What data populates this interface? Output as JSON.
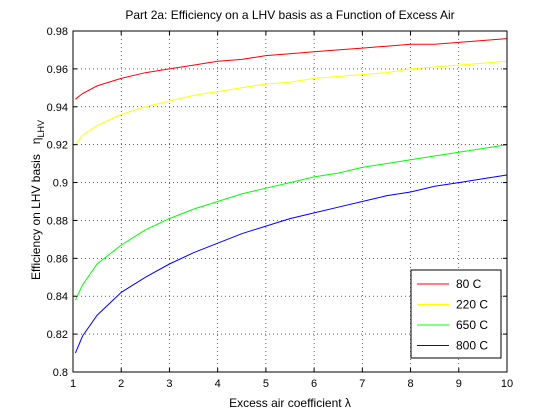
{
  "chart_data": {
    "type": "line",
    "title": "Part 2a: Efficiency on a LHV basis as a Function of Excess Air",
    "xlabel": "Excess air coefficient  λ",
    "ylabel": "Efficiency on LHV basis",
    "ylabel_symbol": "η",
    "ylabel_subscript": "LHV",
    "xlim": [
      1,
      10
    ],
    "ylim": [
      0.8,
      0.98
    ],
    "xticks": [
      1,
      2,
      3,
      4,
      5,
      6,
      7,
      8,
      9,
      10
    ],
    "yticks": [
      0.8,
      0.82,
      0.84,
      0.86,
      0.88,
      0.9,
      0.92,
      0.94,
      0.96,
      0.98
    ],
    "xtick_labels": [
      "1",
      "2",
      "3",
      "4",
      "5",
      "6",
      "7",
      "8",
      "9",
      "10"
    ],
    "ytick_labels": [
      "0.8",
      "0.82",
      "0.84",
      "0.86",
      "0.88",
      "0.9",
      "0.92",
      "0.94",
      "0.96",
      "0.98"
    ],
    "grid": true,
    "legend_position": "bottom-right",
    "series": [
      {
        "name": "80 C",
        "color": "#ff0000",
        "x": [
          1.05,
          1.2,
          1.5,
          2,
          2.5,
          3,
          3.5,
          4,
          4.5,
          5,
          5.5,
          6,
          6.5,
          7,
          7.5,
          8,
          8.5,
          9,
          9.5,
          10
        ],
        "y": [
          0.944,
          0.947,
          0.951,
          0.955,
          0.958,
          0.96,
          0.962,
          0.964,
          0.965,
          0.967,
          0.968,
          0.969,
          0.97,
          0.971,
          0.972,
          0.973,
          0.973,
          0.974,
          0.975,
          0.976
        ]
      },
      {
        "name": "220 C",
        "color": "#ffff00",
        "x": [
          1.05,
          1.2,
          1.5,
          2,
          2.5,
          3,
          3.5,
          4,
          4.5,
          5,
          5.5,
          6,
          6.5,
          7,
          7.5,
          8,
          8.5,
          9,
          9.5,
          10
        ],
        "y": [
          0.92,
          0.925,
          0.93,
          0.936,
          0.94,
          0.943,
          0.946,
          0.948,
          0.95,
          0.952,
          0.953,
          0.955,
          0.956,
          0.957,
          0.958,
          0.96,
          0.961,
          0.962,
          0.963,
          0.964
        ]
      },
      {
        "name": "650 C",
        "color": "#00ff00",
        "x": [
          1.05,
          1.2,
          1.5,
          2,
          2.5,
          3,
          3.5,
          4,
          4.5,
          5,
          5.5,
          6,
          6.5,
          7,
          7.5,
          8,
          8.5,
          9,
          9.5,
          10
        ],
        "y": [
          0.838,
          0.846,
          0.857,
          0.867,
          0.875,
          0.881,
          0.886,
          0.89,
          0.894,
          0.897,
          0.9,
          0.903,
          0.905,
          0.908,
          0.91,
          0.912,
          0.914,
          0.916,
          0.918,
          0.92
        ]
      },
      {
        "name": "800 C",
        "color": "#0000ff",
        "x": [
          1.05,
          1.2,
          1.5,
          2,
          2.5,
          3,
          3.5,
          4,
          4.5,
          5,
          5.5,
          6,
          6.5,
          7,
          7.5,
          8,
          8.5,
          9,
          9.5,
          10
        ],
        "y": [
          0.81,
          0.819,
          0.83,
          0.842,
          0.85,
          0.857,
          0.863,
          0.868,
          0.873,
          0.877,
          0.881,
          0.884,
          0.887,
          0.89,
          0.893,
          0.895,
          0.898,
          0.9,
          0.902,
          0.904
        ]
      }
    ]
  }
}
